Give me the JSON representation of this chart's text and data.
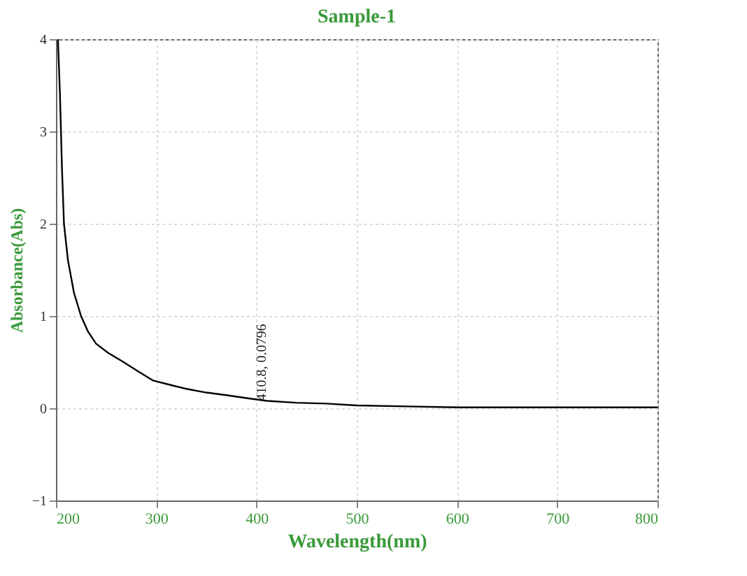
{
  "chart_data": {
    "type": "line",
    "title": "Sample-1",
    "xlabel": "Wavelength(nm)",
    "ylabel": "Absorbance(Abs)",
    "x": [
      202,
      204,
      206,
      208,
      212,
      218,
      225,
      232,
      240,
      252,
      266,
      282,
      297,
      315,
      330,
      350,
      371,
      390,
      410.8,
      440,
      470,
      500,
      550,
      600,
      650,
      700,
      750,
      800
    ],
    "series": [
      {
        "color": "#000000",
        "values": [
          4.0,
          3.4,
          2.6,
          2.0,
          1.6,
          1.25,
          1.0,
          0.83,
          0.7,
          0.6,
          0.51,
          0.4,
          0.3,
          0.25,
          0.21,
          0.17,
          0.14,
          0.11,
          0.08,
          0.06,
          0.05,
          0.03,
          0.02,
          0.01,
          0.01,
          0.01,
          0.01,
          0.01
        ]
      }
    ],
    "xlim": [
      200,
      800
    ],
    "ylim": [
      -1,
      4
    ],
    "xticks": [
      200,
      300,
      400,
      500,
      600,
      700,
      800
    ],
    "yticks": [
      -1,
      0,
      1,
      2,
      3,
      4
    ],
    "grid": true,
    "line_style": "solid",
    "marker": "none",
    "annotations": [
      {
        "text": "410.8, 0.0796",
        "x": 410.8,
        "y": 0.0796
      }
    ]
  }
}
